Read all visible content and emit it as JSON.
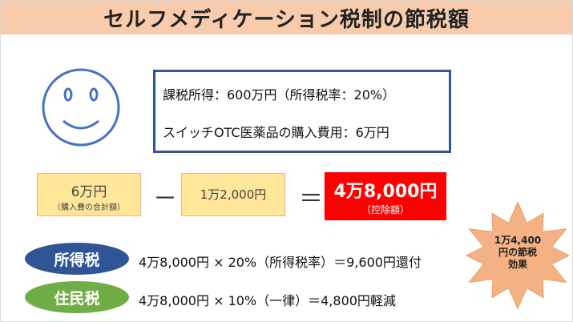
{
  "header": {
    "title": "セルフメディケーション税制の節税額"
  },
  "info": {
    "lines": [
      "課税所得：600万円（所得税率：20%）",
      "スイッチOTC医薬品の購入費用：6万円"
    ]
  },
  "equation": {
    "term1": {
      "amount": "6万円",
      "note": "（購入費の合計額）"
    },
    "operator1": "－",
    "term2": "1万2,000円",
    "operator2": "＝",
    "result": {
      "amount": "4万8,000円",
      "note": "（控除額）"
    }
  },
  "taxes": [
    {
      "label": "所得税",
      "formula": "4万8,000円 × 20%（所得税率）＝9,600円還付"
    },
    {
      "label": "住民税",
      "formula": "4万8,000円 × 10%（一律）＝4,800円軽減"
    }
  ],
  "burst": {
    "lines": [
      "1万4,400",
      "円の節税",
      "効果"
    ]
  }
}
